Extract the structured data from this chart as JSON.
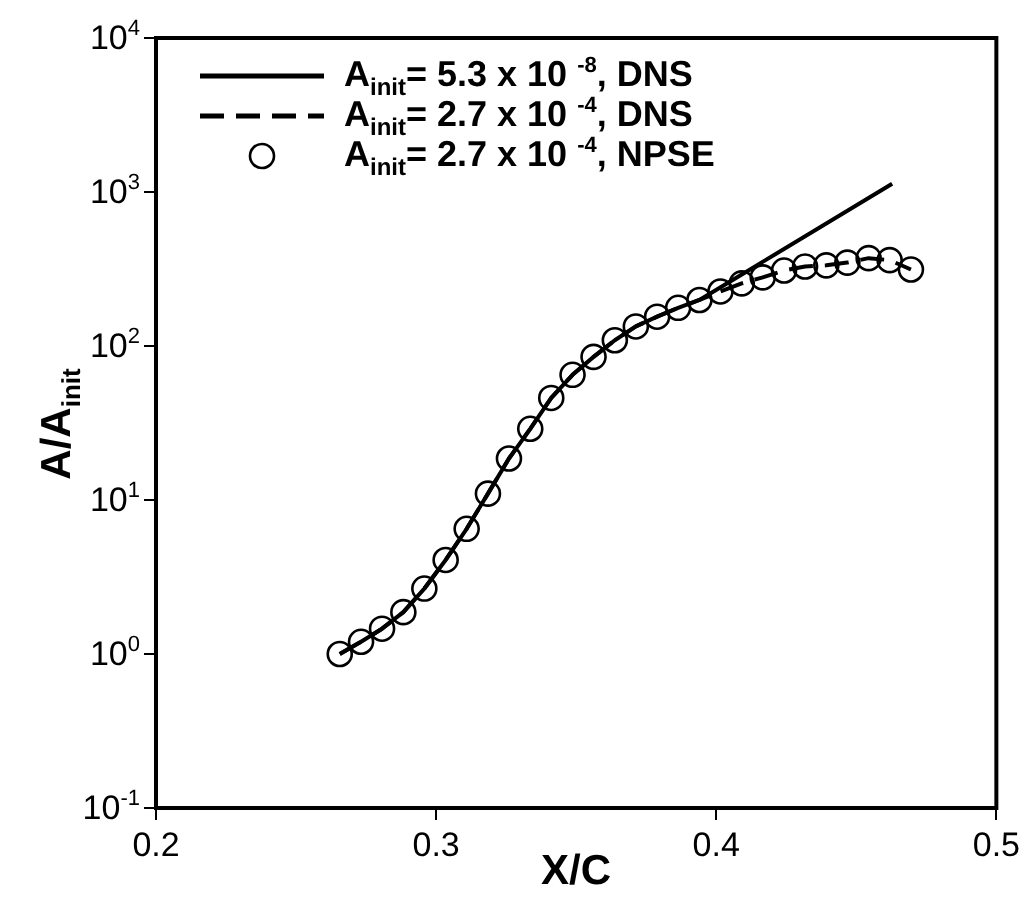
{
  "chart_data": {
    "type": "line",
    "xlabel": "X/C",
    "ylabel": "A/A$_{init}$",
    "xlim": [
      0.2,
      0.5
    ],
    "xticks": [
      0.2,
      0.3,
      0.4,
      0.5
    ],
    "ylim": [
      0.1,
      10000
    ],
    "yticks": [
      {
        "value": 0.1,
        "label": "10$^{-1}$"
      },
      {
        "value": 1,
        "label": "10$^{0}$"
      },
      {
        "value": 10,
        "label": "10$^{1}$"
      },
      {
        "value": 100,
        "label": "10$^{2}$"
      },
      {
        "value": 1000,
        "label": "10$^{3}$"
      },
      {
        "value": 10000,
        "label": "10$^{4}$"
      }
    ],
    "log": "y",
    "grid": false,
    "legend": "top left",
    "series": [
      {
        "name": "A$_{init}$= 5.3 x 10 $^{-8}$, DNS",
        "color": "#000000",
        "line_style": "solid",
        "marker": "none",
        "x": [
          0.2656,
          0.2732,
          0.2807,
          0.2883,
          0.2958,
          0.3034,
          0.3109,
          0.3185,
          0.326,
          0.3336,
          0.3411,
          0.3487,
          0.3562,
          0.3638,
          0.3713,
          0.3789,
          0.3864,
          0.394,
          0.4628
        ],
        "values": [
          1.0,
          1.2,
          1.46,
          1.87,
          2.66,
          4.08,
          6.5,
          11,
          18.6,
          29,
          46,
          65,
          85,
          109,
          134,
          155,
          177,
          199,
          1130
        ]
      },
      {
        "name": "A$_{init}$= 2.7 x 10 $^{-4}$, DNS",
        "color": "#000000",
        "line_style": "dashed",
        "marker": "none",
        "x": [
          0.2656,
          0.2732,
          0.2807,
          0.2883,
          0.2958,
          0.3034,
          0.3109,
          0.3185,
          0.326,
          0.3336,
          0.3411,
          0.3487,
          0.3562,
          0.3638,
          0.3713,
          0.3789,
          0.3864,
          0.394,
          0.4015,
          0.4091,
          0.4166,
          0.4242,
          0.4317,
          0.4393,
          0.4468,
          0.4544,
          0.4619,
          0.4695
        ],
        "values": [
          1.0,
          1.2,
          1.46,
          1.87,
          2.66,
          4.08,
          6.5,
          11,
          18.6,
          29,
          46,
          65,
          85,
          109,
          134,
          155,
          177,
          199,
          226,
          255,
          279,
          309,
          328,
          334,
          348,
          372,
          361,
          314
        ]
      },
      {
        "name": "A$_{init}$= 2.7 x 10 $^{-4}$, NPSE",
        "color": "#000000",
        "type": "scatter",
        "marker": "circle",
        "x": [
          0.2656,
          0.2732,
          0.2807,
          0.2883,
          0.2958,
          0.3034,
          0.3109,
          0.3185,
          0.326,
          0.3336,
          0.3411,
          0.3487,
          0.3562,
          0.3638,
          0.3713,
          0.3789,
          0.3864,
          0.394,
          0.4015,
          0.4091,
          0.4166,
          0.4242,
          0.4317,
          0.4393,
          0.4468,
          0.4544,
          0.4619,
          0.4695
        ],
        "values": [
          1.0,
          1.2,
          1.46,
          1.87,
          2.66,
          4.08,
          6.5,
          11,
          18.6,
          29,
          46,
          65,
          85,
          109,
          134,
          155,
          177,
          199,
          226,
          255,
          279,
          309,
          328,
          334,
          348,
          372,
          361,
          314
        ]
      }
    ]
  }
}
